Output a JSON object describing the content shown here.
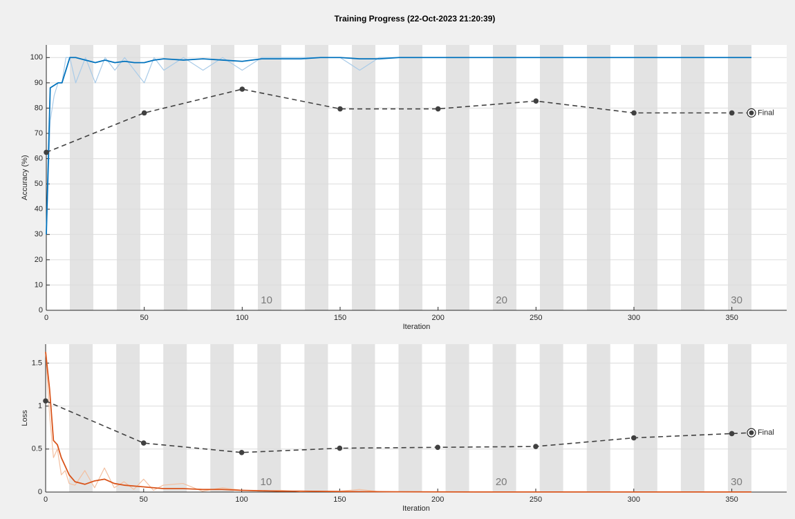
{
  "title": "Training Progress (22-Oct-2023 21:20:39)",
  "chart_data": [
    {
      "type": "line",
      "ylabel": "Accuracy (%)",
      "xlabel": "Iteration",
      "xlim": [
        0,
        378
      ],
      "ylim": [
        0,
        105
      ],
      "xticks": [
        0,
        50,
        100,
        150,
        200,
        250,
        300,
        350
      ],
      "yticks": [
        0,
        10,
        20,
        30,
        40,
        50,
        60,
        70,
        80,
        90,
        100
      ],
      "grid": "y",
      "epoch_shading": {
        "iterations_per_epoch": 12,
        "epochs": 30,
        "color": "#e3e3e3"
      },
      "epoch_labels": [
        10,
        20,
        30
      ],
      "series": [
        {
          "color": "#a9cbe8",
          "width": 1.2,
          "x": [
            0,
            2,
            4,
            6,
            8,
            10,
            12,
            15,
            20,
            25,
            30,
            35,
            40,
            45,
            50,
            55,
            60,
            70,
            80,
            90,
            100,
            110,
            120,
            130,
            140,
            150,
            160,
            170,
            180,
            200,
            220,
            240,
            260,
            280,
            300,
            320,
            340,
            360
          ],
          "values": [
            30,
            75,
            85,
            90,
            90,
            100,
            100,
            90,
            100,
            90,
            100,
            95,
            100,
            95,
            90,
            100,
            95,
            100,
            95,
            100,
            95,
            100,
            100,
            100,
            100,
            100,
            95,
            100,
            100,
            100,
            100,
            100,
            100,
            100,
            100,
            100,
            100,
            100
          ]
        },
        {
          "color": "#0072bd",
          "width": 1.8,
          "x": [
            0,
            2,
            4,
            6,
            8,
            10,
            12,
            15,
            20,
            25,
            30,
            35,
            40,
            45,
            50,
            55,
            60,
            70,
            80,
            90,
            100,
            110,
            120,
            130,
            140,
            150,
            160,
            170,
            180,
            200,
            220,
            240,
            260,
            280,
            300,
            320,
            340,
            360
          ],
          "values": [
            30,
            88,
            89,
            90,
            90,
            95,
            100,
            100,
            99,
            98,
            99,
            98,
            98.5,
            98,
            98,
            99,
            99.5,
            99,
            99.5,
            99,
            98.5,
            99.5,
            99.5,
            99.5,
            100,
            100,
            99.5,
            99.5,
            100,
            100,
            100,
            100,
            100,
            100,
            100,
            100,
            100,
            100
          ]
        },
        {
          "color": "#404040",
          "width": 1.6,
          "dashed": true,
          "markers": true,
          "annotation": "Final",
          "x": [
            0,
            50,
            100,
            150,
            200,
            250,
            300,
            350,
            360
          ],
          "values": [
            62.5,
            78.1,
            87.5,
            79.7,
            79.7,
            82.8,
            78.1,
            78.1,
            78.1
          ]
        }
      ]
    },
    {
      "type": "line",
      "ylabel": "Loss",
      "xlabel": "Iteration",
      "xlim": [
        0,
        378
      ],
      "ylim": [
        0,
        1.72
      ],
      "xticks": [
        0,
        50,
        100,
        150,
        200,
        250,
        300,
        350
      ],
      "yticks": [
        0,
        0.5,
        1,
        1.5
      ],
      "grid": "y",
      "epoch_shading": {
        "iterations_per_epoch": 12,
        "epochs": 30,
        "color": "#e3e3e3"
      },
      "epoch_labels": [
        10,
        20,
        30
      ],
      "series": [
        {
          "color": "#f3bfa0",
          "width": 1.2,
          "x": [
            0,
            2,
            4,
            6,
            8,
            10,
            12,
            15,
            20,
            25,
            30,
            35,
            40,
            45,
            50,
            55,
            60,
            70,
            80,
            90,
            100,
            110,
            120,
            130,
            140,
            150,
            160,
            170,
            180,
            200,
            220,
            240,
            260,
            280,
            300,
            320,
            340,
            360
          ],
          "values": [
            1.63,
            0.9,
            0.4,
            0.5,
            0.2,
            0.25,
            0.1,
            0.08,
            0.25,
            0.05,
            0.28,
            0.05,
            0.12,
            0.03,
            0.15,
            0.02,
            0.08,
            0.1,
            0.01,
            0.05,
            0.02,
            0.01,
            0.02,
            0.005,
            0.01,
            0.01,
            0.03,
            0.005,
            0.002,
            0.001,
            0.001,
            0.001,
            0.001,
            0.001,
            0.001,
            0.001,
            0.001,
            0.001
          ]
        },
        {
          "color": "#d95319",
          "width": 1.8,
          "x": [
            0,
            2,
            4,
            6,
            8,
            10,
            12,
            15,
            20,
            25,
            30,
            35,
            40,
            45,
            50,
            55,
            60,
            70,
            80,
            90,
            100,
            110,
            120,
            130,
            140,
            150,
            160,
            170,
            180,
            200,
            220,
            240,
            260,
            280,
            300,
            320,
            340,
            360
          ],
          "values": [
            1.63,
            1.2,
            0.6,
            0.55,
            0.4,
            0.3,
            0.2,
            0.12,
            0.09,
            0.13,
            0.15,
            0.1,
            0.08,
            0.07,
            0.06,
            0.05,
            0.04,
            0.04,
            0.03,
            0.03,
            0.02,
            0.015,
            0.01,
            0.01,
            0.008,
            0.006,
            0.005,
            0.004,
            0.003,
            0.002,
            0.001,
            0.001,
            0.001,
            0.001,
            0.001,
            0.001,
            0.001,
            0.001
          ]
        },
        {
          "color": "#404040",
          "width": 1.6,
          "dashed": true,
          "markers": true,
          "annotation": "Final",
          "x": [
            0,
            50,
            100,
            150,
            200,
            250,
            300,
            350,
            360
          ],
          "values": [
            1.06,
            0.57,
            0.46,
            0.51,
            0.52,
            0.53,
            0.63,
            0.68,
            0.69
          ]
        }
      ]
    }
  ]
}
